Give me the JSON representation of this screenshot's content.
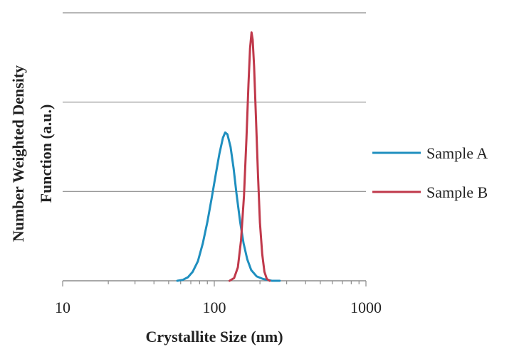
{
  "chart_data": {
    "type": "line",
    "xlabel": "Crystallite Size (nm)",
    "ylabel_lines": [
      "Number  Weighted Density",
      "Function  (a.u.)"
    ],
    "x_scale": "log",
    "xlim": [
      10,
      1000
    ],
    "ylim": [
      0,
      3
    ],
    "x_tick_labels": [
      {
        "value": 10,
        "label": "10"
      },
      {
        "value": 100,
        "label": "100"
      },
      {
        "value": 1000,
        "label": "1000"
      }
    ],
    "y_gridlines": [
      1,
      2,
      3
    ],
    "y_tick_labels": false,
    "grid": true,
    "legend_position": "right",
    "series": [
      {
        "name": "Sample A",
        "color": "#1f8fbf",
        "points": [
          [
            57,
            0.0
          ],
          [
            62,
            0.01
          ],
          [
            67,
            0.04
          ],
          [
            72,
            0.1
          ],
          [
            78,
            0.22
          ],
          [
            84,
            0.42
          ],
          [
            90,
            0.66
          ],
          [
            96,
            0.92
          ],
          [
            102,
            1.18
          ],
          [
            108,
            1.42
          ],
          [
            114,
            1.6
          ],
          [
            118,
            1.66
          ],
          [
            122,
            1.64
          ],
          [
            128,
            1.5
          ],
          [
            134,
            1.26
          ],
          [
            140,
            0.98
          ],
          [
            148,
            0.66
          ],
          [
            156,
            0.42
          ],
          [
            165,
            0.24
          ],
          [
            175,
            0.12
          ],
          [
            190,
            0.05
          ],
          [
            210,
            0.02
          ],
          [
            240,
            0.0
          ],
          [
            270,
            0.0
          ]
        ]
      },
      {
        "name": "Sample B",
        "color": "#c0394b",
        "points": [
          [
            126,
            0.0
          ],
          [
            135,
            0.03
          ],
          [
            143,
            0.15
          ],
          [
            150,
            0.45
          ],
          [
            157,
            0.95
          ],
          [
            163,
            1.6
          ],
          [
            168,
            2.2
          ],
          [
            172,
            2.6
          ],
          [
            176,
            2.78
          ],
          [
            179,
            2.7
          ],
          [
            183,
            2.4
          ],
          [
            188,
            1.85
          ],
          [
            194,
            1.2
          ],
          [
            200,
            0.65
          ],
          [
            207,
            0.3
          ],
          [
            214,
            0.1
          ],
          [
            222,
            0.02
          ],
          [
            232,
            0.0
          ]
        ]
      }
    ]
  }
}
